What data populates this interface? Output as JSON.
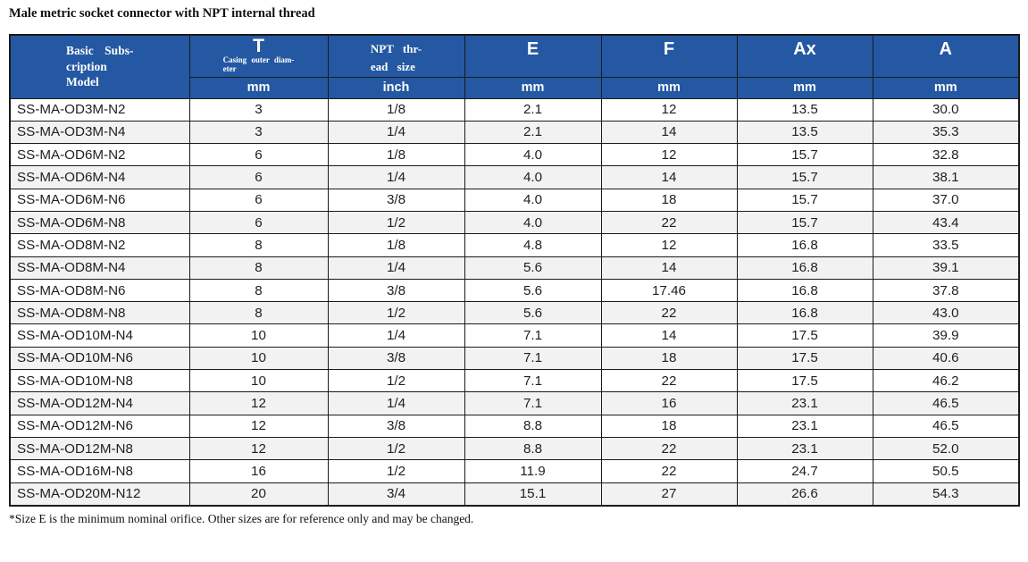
{
  "page_title": "Male metric socket connector with NPT internal thread",
  "colors": {
    "header_blue": "#2458A2",
    "zebra_gray": "#F2F2F2",
    "border": "#1A1A1A",
    "text": "#1F1F1F"
  },
  "table": {
    "header": {
      "model": "Basic Subs-\ncription\nModel",
      "t_label": "T",
      "t_sub": "Casing outer diam-\neter",
      "npt": "NPT thr-\nead size",
      "e": "E",
      "f": "F",
      "ax": "Ax",
      "a": "A",
      "units": [
        "mm",
        "inch",
        "mm",
        "mm",
        "mm",
        "mm"
      ]
    },
    "rows": [
      [
        "SS-MA-OD3M-N2",
        "3",
        "1/8",
        "2.1",
        "12",
        "13.5",
        "30.0"
      ],
      [
        "SS-MA-OD3M-N4",
        "3",
        "1/4",
        "2.1",
        "14",
        "13.5",
        "35.3"
      ],
      [
        "SS-MA-OD6M-N2",
        "6",
        "1/8",
        "4.0",
        "12",
        "15.7",
        "32.8"
      ],
      [
        "SS-MA-OD6M-N4",
        "6",
        "1/4",
        "4.0",
        "14",
        "15.7",
        "38.1"
      ],
      [
        "SS-MA-OD6M-N6",
        "6",
        "3/8",
        "4.0",
        "18",
        "15.7",
        "37.0"
      ],
      [
        "SS-MA-OD6M-N8",
        "6",
        "1/2",
        "4.0",
        "22",
        "15.7",
        "43.4"
      ],
      [
        "SS-MA-OD8M-N2",
        "8",
        "1/8",
        "4.8",
        "12",
        "16.8",
        "33.5"
      ],
      [
        "SS-MA-OD8M-N4",
        "8",
        "1/4",
        "5.6",
        "14",
        "16.8",
        "39.1"
      ],
      [
        "SS-MA-OD8M-N6",
        "8",
        "3/8",
        "5.6",
        "17.46",
        "16.8",
        "37.8"
      ],
      [
        "SS-MA-OD8M-N8",
        "8",
        "1/2",
        "5.6",
        "22",
        "16.8",
        "43.0"
      ],
      [
        "SS-MA-OD10M-N4",
        "10",
        "1/4",
        "7.1",
        "14",
        "17.5",
        "39.9"
      ],
      [
        "SS-MA-OD10M-N6",
        "10",
        "3/8",
        "7.1",
        "18",
        "17.5",
        "40.6"
      ],
      [
        "SS-MA-OD10M-N8",
        "10",
        "1/2",
        "7.1",
        "22",
        "17.5",
        "46.2"
      ],
      [
        "SS-MA-OD12M-N4",
        "12",
        "1/4",
        "7.1",
        "16",
        "23.1",
        "46.5"
      ],
      [
        "SS-MA-OD12M-N6",
        "12",
        "3/8",
        "8.8",
        "18",
        "23.1",
        "46.5"
      ],
      [
        "SS-MA-OD12M-N8",
        "12",
        "1/2",
        "8.8",
        "22",
        "23.1",
        "52.0"
      ],
      [
        "SS-MA-OD16M-N8",
        "16",
        "1/2",
        "11.9",
        "22",
        "24.7",
        "50.5"
      ],
      [
        "SS-MA-OD20M-N12",
        "20",
        "3/4",
        "15.1",
        "27",
        "26.6",
        "54.3"
      ]
    ]
  },
  "footnote": "*Size E is the minimum nominal orifice. Other sizes are for reference only and may be changed."
}
